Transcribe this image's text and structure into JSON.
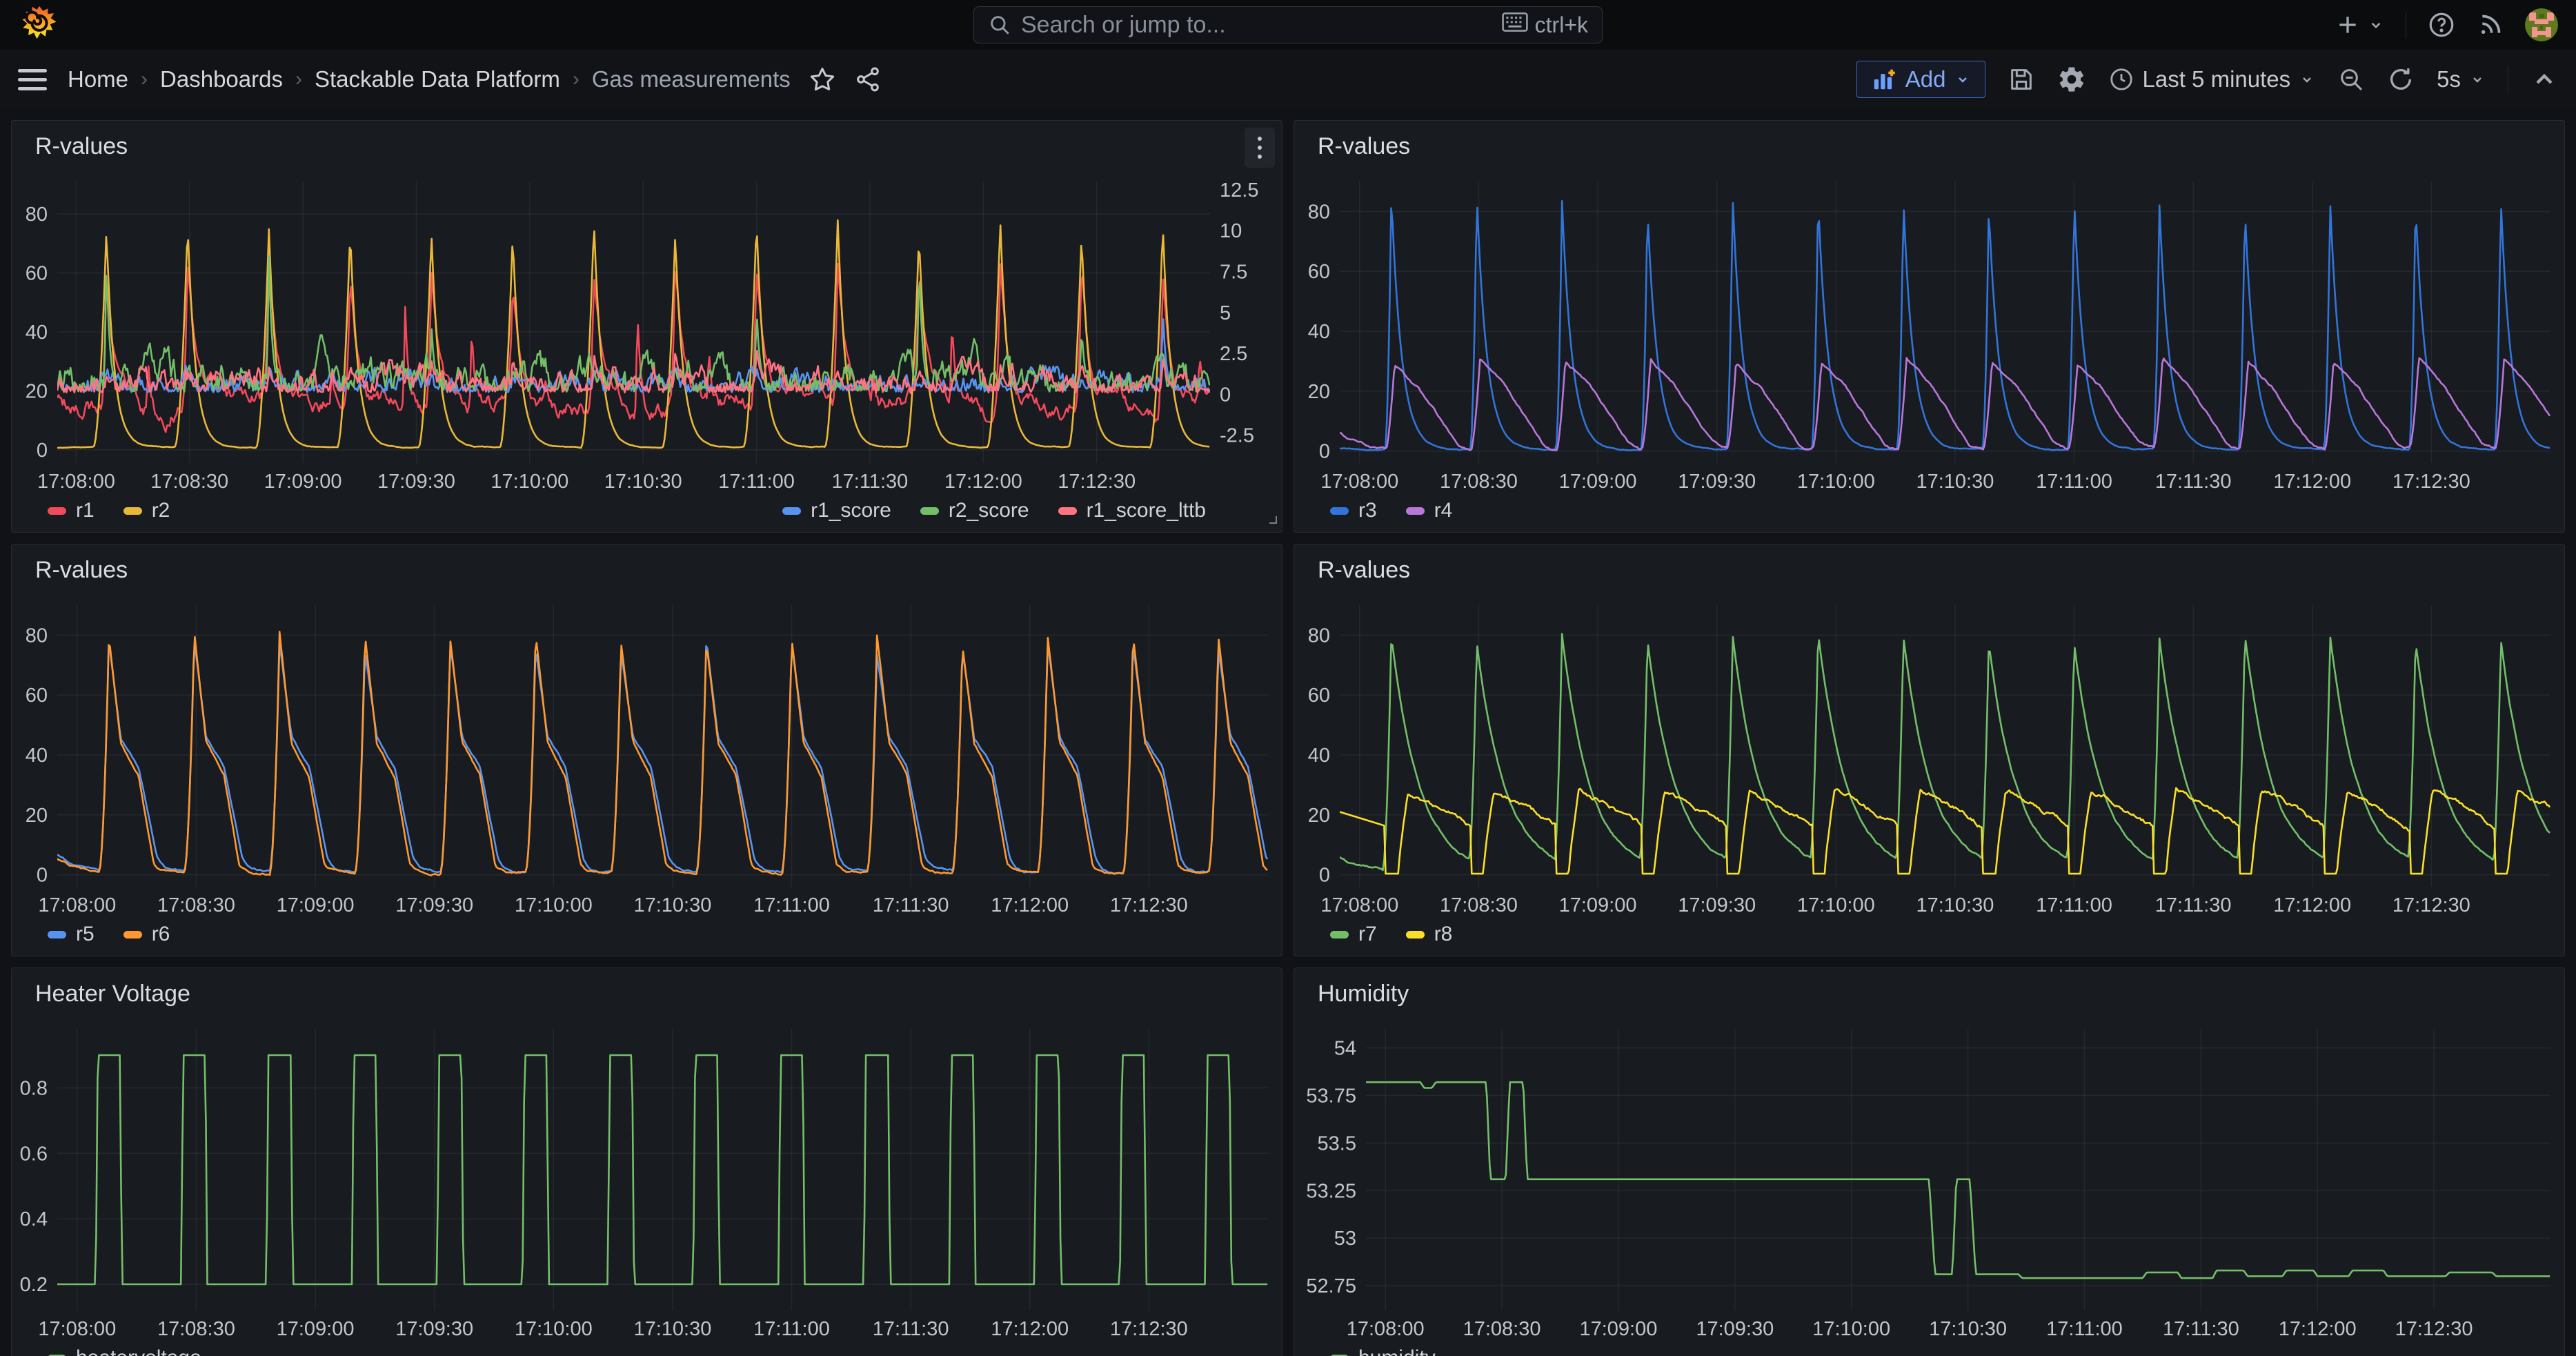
{
  "topnav": {
    "search_placeholder": "Search or jump to...",
    "shortcut": "ctrl+k"
  },
  "breadcrumb": {
    "items": [
      "Home",
      "Dashboards",
      "Stackable Data Platform",
      "Gas measurements"
    ]
  },
  "toolbar": {
    "add_label": "Add",
    "time_range": "Last 5 minutes",
    "refresh_interval": "5s"
  },
  "colors": {
    "background": "#111217",
    "panel": "#181b1f",
    "accent_blue": "#83aaf5",
    "grid": "rgba(204,204,220,0.07)"
  },
  "x_axis": {
    "t_max": 305,
    "tick_times": [
      5,
      35,
      65,
      95,
      125,
      155,
      185,
      215,
      245,
      275
    ],
    "tick_labels": [
      "17:08:00",
      "17:08:30",
      "17:09:00",
      "17:09:30",
      "17:10:00",
      "17:10:30",
      "17:11:00",
      "17:11:30",
      "17:12:00",
      "17:12:30"
    ]
  },
  "chart_data": [
    {
      "type": "line",
      "title": "R-values",
      "y_min": -4.5,
      "y_max": 91,
      "y_ticks": [
        0,
        20,
        40,
        60,
        80
      ],
      "y_tick_labels": [
        "0",
        "20",
        "40",
        "60",
        "80"
      ],
      "right_min": -4.2,
      "right_max": 13.0,
      "right_ticks": [
        -2.5,
        0,
        2.5,
        5,
        7.5,
        10,
        12.5
      ],
      "right_tick_labels": [
        "-2.5",
        "0",
        "2.5",
        "5",
        "7.5",
        "10",
        "12.5"
      ],
      "legend": [
        {
          "label": "r1",
          "color": "#F2495C"
        },
        {
          "label": "r2",
          "color": "#EAB839"
        }
      ],
      "legend_right": [
        {
          "label": "r1_score",
          "color": "#5794F2"
        },
        {
          "label": "r2_score",
          "color": "#73BF69"
        },
        {
          "label": "r1_score_lttb",
          "color": "#FF7383"
        }
      ],
      "series": [
        {
          "name": "r1",
          "color": "#F2495C",
          "axis": "left",
          "gen": {
            "pattern": "band",
            "t0": 13,
            "period": 21.5,
            "band": 16,
            "noise": 1.1,
            "peak": 60,
            "jit": 5,
            "sec_prob": 0.72,
            "sec_min": 20,
            "sec_max": 52,
            "dip": 5.2,
            "rise": 1.5,
            "tau": 2.4,
            "seed": 1
          }
        },
        {
          "name": "r2",
          "color": "#EAB839",
          "axis": "left",
          "gen": {
            "pattern": "decay",
            "t0": 13,
            "period": 21.5,
            "peak": 75,
            "jit": 3,
            "rise": 3.4,
            "tau": 2.1,
            "base": 0.8,
            "startv": 0.8,
            "noise": 0.1,
            "seed": 2
          }
        },
        {
          "name": "r1_score",
          "color": "#5794F2",
          "axis": "right",
          "gen": {
            "pattern": "score",
            "t0": 13,
            "period": 21.5,
            "base": 0.12,
            "noise": 0.5,
            "tau": 0.9,
            "spikes": [
              {
                "ks": [
                  13
                ],
                "p": 5.0,
                "j": 0.5
              },
              {
                "ks": "all",
                "p": 1.1,
                "j": 0.7
              }
            ],
            "seed": 11
          }
        },
        {
          "name": "r2_score",
          "color": "#73BF69",
          "axis": "right",
          "gen": {
            "pattern": "score",
            "t0": 13,
            "period": 21.5,
            "base": 0.15,
            "noise": 0.8,
            "tau": 0.9,
            "spikes": [
              {
                "ks": [
                  0,
                  2,
                  10
                ],
                "p": 8.8,
                "j": 0.7
              },
              {
                "ks": [
                  4,
                  8,
                  12
                ],
                "p": 4.2,
                "j": 1.2
              },
              {
                "ks": "all",
                "p": 1.2,
                "j": 0.8
              }
            ],
            "seed": 12
          }
        },
        {
          "name": "r1_score_lttb",
          "color": "#FF7383",
          "axis": "right",
          "gen": {
            "pattern": "score",
            "t0": 13,
            "period": 21.5,
            "base": 0.1,
            "noise": 0.6,
            "tau": 1.3,
            "spikes": [
              {
                "ks": "all",
                "p": 2.1,
                "j": 0.9
              }
            ],
            "seed": 13
          }
        }
      ]
    },
    {
      "type": "line",
      "title": "R-values",
      "y_min": -4,
      "y_max": 90,
      "y_ticks": [
        0,
        20,
        40,
        60,
        80
      ],
      "y_tick_labels": [
        "0",
        "20",
        "40",
        "60",
        "80"
      ],
      "legend": [
        {
          "label": "r3",
          "color": "#3274D9"
        },
        {
          "label": "r4",
          "color": "#B877D9"
        }
      ],
      "series": [
        {
          "name": "r3",
          "color": "#3274D9",
          "axis": "left",
          "gen": {
            "pattern": "decay",
            "t0": 13,
            "period": 21.5,
            "peak": 84,
            "jit": 2.5,
            "rise": 1.6,
            "tau": 2.6,
            "base": 0.5,
            "startv": 0.9,
            "noise": 0.12,
            "seed": 3
          }
        },
        {
          "name": "r4",
          "color": "#B877D9",
          "axis": "left",
          "gen": {
            "pattern": "ramp",
            "t0": 13.8,
            "period": 21.5,
            "peak": 30,
            "jit": 1.2,
            "rise": 2.2,
            "phases": [
              [
                6,
                22
              ],
              [
                15.5,
                3.2
              ]
            ],
            "tau": 1.8,
            "base": 0.35,
            "startv": 6,
            "noise": 0.3,
            "seed": 4
          }
        }
      ]
    },
    {
      "type": "line",
      "title": "R-values",
      "y_min": -4,
      "y_max": 90,
      "y_ticks": [
        0,
        20,
        40,
        60,
        80
      ],
      "y_tick_labels": [
        "0",
        "20",
        "40",
        "60",
        "80"
      ],
      "legend": [
        {
          "label": "r5",
          "color": "#5794F2"
        },
        {
          "label": "r6",
          "color": "#FF9830"
        }
      ],
      "series": [
        {
          "name": "r5",
          "color": "#5794F2",
          "axis": "left",
          "gen": {
            "pattern": "saw",
            "t0": 13,
            "period": 21.5,
            "peak": 77,
            "jit": 3.5,
            "rise": 2.5,
            "phases": [
              [
                3,
                46
              ],
              [
                7.5,
                36
              ],
              [
                12,
                6
              ]
            ],
            "tail": 0.9,
            "startv": 6.5,
            "noise": 0.25,
            "seed": 5
          }
        },
        {
          "name": "r6",
          "color": "#FF9830",
          "axis": "left",
          "gen": {
            "pattern": "saw",
            "t0": 13,
            "period": 21.5,
            "peak": 79,
            "jit": 2.2,
            "rise": 2.5,
            "phases": [
              [
                3,
                44
              ],
              [
                7.5,
                33
              ],
              [
                11.3,
                3.5
              ]
            ],
            "tail": 0.6,
            "startv": 5.5,
            "noise": 0.25,
            "seed": 6
          }
        }
      ]
    },
    {
      "type": "line",
      "title": "R-values",
      "y_min": -4,
      "y_max": 90,
      "y_ticks": [
        0,
        20,
        40,
        60,
        80
      ],
      "y_tick_labels": [
        "0",
        "20",
        "40",
        "60",
        "80"
      ],
      "legend": [
        {
          "label": "r7",
          "color": "#73BF69"
        },
        {
          "label": "r8",
          "color": "#FADE2A"
        }
      ],
      "series": [
        {
          "name": "r7",
          "color": "#73BF69",
          "axis": "left",
          "gen": {
            "pattern": "decay",
            "t0": 13,
            "period": 21.5,
            "peak": 79,
            "jit": 2,
            "rise": 2.2,
            "tau": 7,
            "base": 1.0,
            "startv": 6,
            "noise": 0.25,
            "seed": 7
          }
        },
        {
          "name": "r8",
          "color": "#FADE2A",
          "axis": "left",
          "gen": {
            "pattern": "osc",
            "t0": 13,
            "period": 21.5,
            "plat": 27.5,
            "jit": 1.2,
            "low": 0.35,
            "drop_lead": 1.5,
            "drop_len": 3.2,
            "rise": 2.5,
            "endv": 16.3,
            "start": 21,
            "noise": 0.55,
            "seed": 8
          }
        }
      ]
    },
    {
      "type": "line",
      "title": "Heater Voltage",
      "y_min": 0.12,
      "y_max": 0.98,
      "y_ticks": [
        0.2,
        0.4,
        0.6,
        0.8
      ],
      "y_tick_labels": [
        "0.2",
        "0.4",
        "0.6",
        "0.8"
      ],
      "legend": [
        {
          "label": "heatervoltage",
          "color": "#73BF69"
        }
      ],
      "series": [
        {
          "name": "heatervoltage",
          "color": "#73BF69",
          "axis": "left",
          "gen": {
            "pattern": "square",
            "t0": 13,
            "period": 21.5,
            "hi": 0.9,
            "lo": 0.2,
            "half": 2.8,
            "edge": 0.5,
            "seed": 9
          }
        }
      ]
    },
    {
      "type": "line",
      "title": "Humidity",
      "y_min": 52.62,
      "y_max": 54.1,
      "y_ticks": [
        52.75,
        53,
        53.25,
        53.5,
        53.75,
        54
      ],
      "y_tick_labels": [
        "52.75",
        "53",
        "53.25",
        "53.5",
        "53.75",
        "54"
      ],
      "legend": [
        {
          "label": "humidity",
          "color": "#73BF69"
        }
      ],
      "series": [
        {
          "name": "humidity",
          "color": "#73BF69",
          "axis": "left",
          "gen": {
            "pattern": "steps",
            "seed": 10,
            "points": [
              [
                0,
                53.82
              ],
              [
                14,
                53.82
              ],
              [
                15,
                53.79
              ],
              [
                17,
                53.79
              ],
              [
                18,
                53.82
              ],
              [
                31,
                53.82
              ],
              [
                32,
                53.31
              ],
              [
                36,
                53.31
              ],
              [
                37,
                53.82
              ],
              [
                40.5,
                53.82
              ],
              [
                41.5,
                53.31
              ],
              [
                145,
                53.31
              ],
              [
                146.5,
                52.81
              ],
              [
                151,
                52.81
              ],
              [
                152,
                53.31
              ],
              [
                155.5,
                53.31
              ],
              [
                157,
                52.81
              ],
              [
                168,
                52.81
              ],
              [
                169,
                52.79
              ],
              [
                200,
                52.79
              ],
              [
                201,
                52.82
              ],
              [
                209,
                52.82
              ],
              [
                210,
                52.79
              ],
              [
                218,
                52.79
              ],
              [
                219,
                52.83
              ],
              [
                226,
                52.83
              ],
              [
                227,
                52.8
              ],
              [
                236,
                52.8
              ],
              [
                237,
                52.83
              ],
              [
                244,
                52.83
              ],
              [
                245,
                52.8
              ],
              [
                253,
                52.8
              ],
              [
                254,
                52.83
              ],
              [
                262,
                52.83
              ],
              [
                263,
                52.8
              ],
              [
                278,
                52.8
              ],
              [
                279,
                52.82
              ],
              [
                290,
                52.82
              ],
              [
                291,
                52.8
              ],
              [
                305,
                52.8
              ]
            ]
          }
        }
      ]
    }
  ]
}
